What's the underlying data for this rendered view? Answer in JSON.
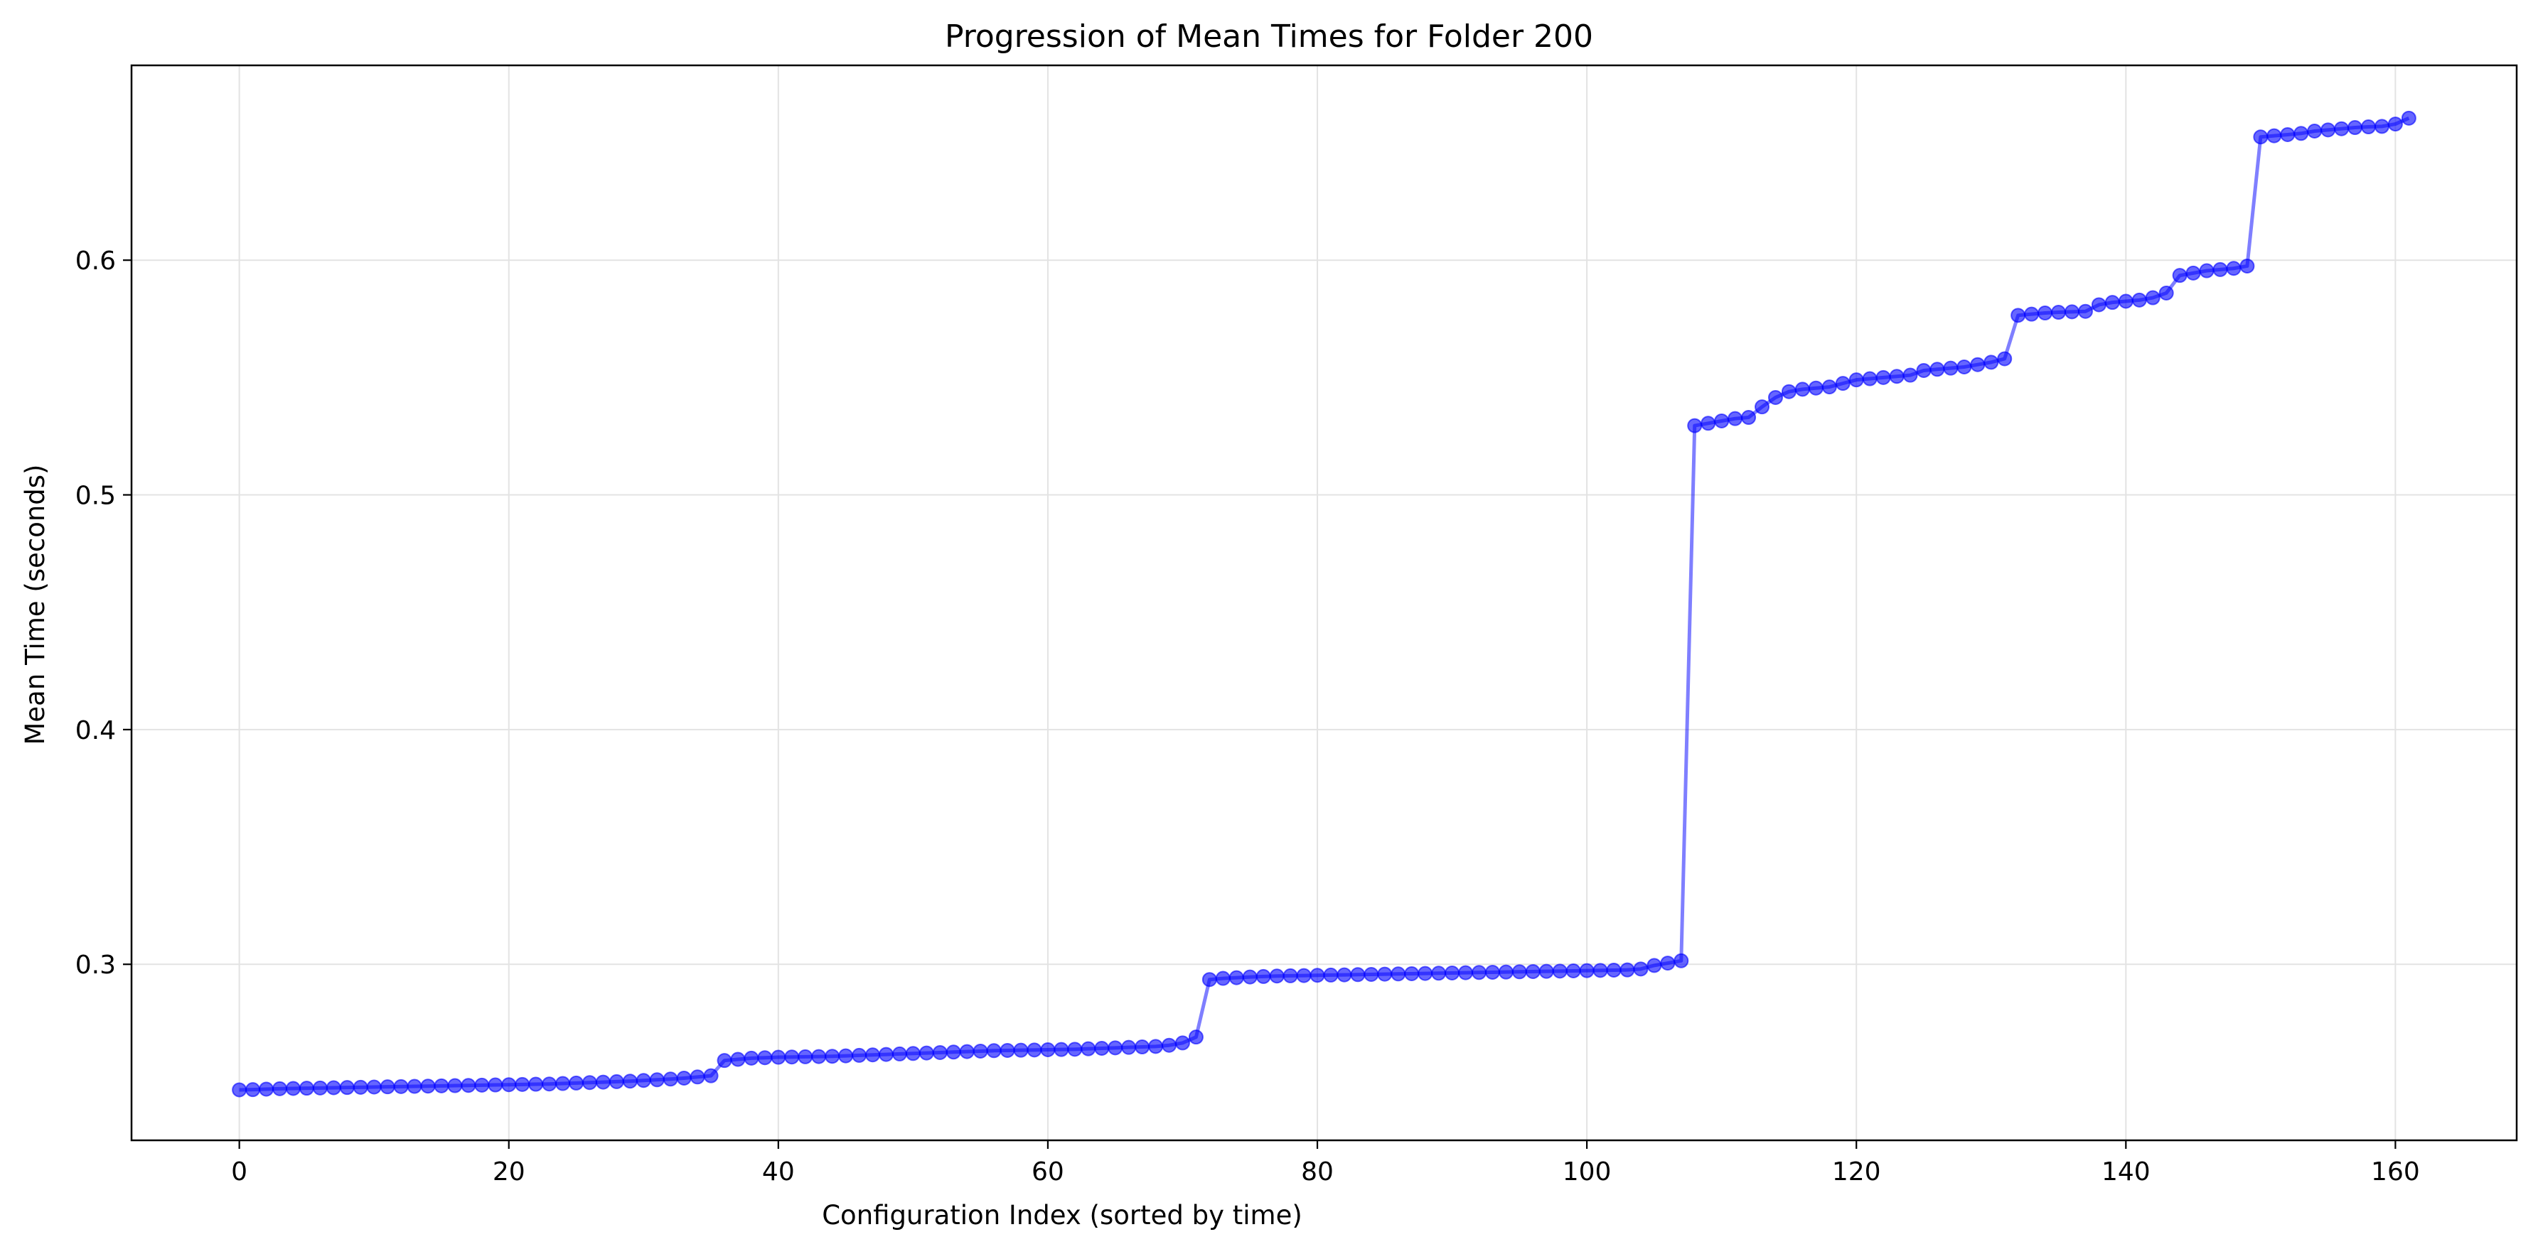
{
  "chart_data": {
    "type": "line",
    "title": "Progression of Mean Times for Folder 200",
    "xlabel": "Configuration Index (sorted by time)",
    "ylabel": "Mean Time (seconds)",
    "xlim": [
      -8,
      169
    ],
    "ylim": [
      0.225,
      0.683
    ],
    "xticks": [
      0,
      20,
      40,
      60,
      80,
      100,
      120,
      140,
      160
    ],
    "xtick_labels": [
      "0",
      "20",
      "40",
      "60",
      "80",
      "100",
      "120",
      "140",
      "160"
    ],
    "yticks": [
      0.3,
      0.4,
      0.5,
      0.6
    ],
    "ytick_labels": [
      "0.3",
      "0.4",
      "0.5",
      "0.6"
    ],
    "grid": true,
    "line_color": "#0000ff",
    "marker": "circle",
    "series": [
      {
        "x": [
          0,
          1,
          2,
          3,
          4,
          5,
          6,
          7,
          8,
          9,
          10,
          11,
          12,
          13,
          14,
          15,
          16,
          17,
          18,
          19,
          20,
          21,
          22,
          23,
          24,
          25,
          26,
          27,
          28,
          29,
          30,
          31,
          32,
          33,
          34,
          35,
          36,
          37,
          38,
          39,
          40,
          41,
          42,
          43,
          44,
          45,
          46,
          47,
          48,
          49,
          50,
          51,
          52,
          53,
          54,
          55,
          56,
          57,
          58,
          59,
          60,
          61,
          62,
          63,
          64,
          65,
          66,
          67,
          68,
          69,
          70,
          71,
          72,
          73,
          74,
          75,
          76,
          77,
          78,
          79,
          80,
          81,
          82,
          83,
          84,
          85,
          86,
          87,
          88,
          89,
          90,
          91,
          92,
          93,
          94,
          95,
          96,
          97,
          98,
          99,
          100,
          101,
          102,
          103,
          104,
          105,
          106,
          107,
          108,
          109,
          110,
          111,
          112,
          113,
          114,
          115,
          116,
          117,
          118,
          119,
          120,
          121,
          122,
          123,
          124,
          125,
          126,
          127,
          128,
          129,
          130,
          131,
          132,
          133,
          134,
          135,
          136,
          137,
          138,
          139,
          140,
          141,
          142,
          143,
          144,
          145,
          146,
          147,
          148,
          149,
          150,
          151,
          152,
          153,
          154,
          155,
          156,
          157,
          158,
          159,
          160,
          161
        ],
        "y": [
          0.2465,
          0.2466,
          0.2468,
          0.247,
          0.2471,
          0.2472,
          0.2473,
          0.2474,
          0.2475,
          0.2476,
          0.2477,
          0.2478,
          0.2479,
          0.248,
          0.2481,
          0.2482,
          0.2483,
          0.2484,
          0.2485,
          0.2486,
          0.2487,
          0.2488,
          0.2489,
          0.249,
          0.2492,
          0.2494,
          0.2496,
          0.2498,
          0.25,
          0.2502,
          0.2505,
          0.2508,
          0.2511,
          0.2515,
          0.252,
          0.2525,
          0.259,
          0.2595,
          0.26,
          0.2602,
          0.2604,
          0.2605,
          0.2606,
          0.2607,
          0.2608,
          0.261,
          0.2612,
          0.2614,
          0.2616,
          0.2618,
          0.262,
          0.2622,
          0.2624,
          0.2626,
          0.2628,
          0.263,
          0.2632,
          0.2633,
          0.2634,
          0.2635,
          0.2636,
          0.2637,
          0.2638,
          0.264,
          0.2642,
          0.2644,
          0.2646,
          0.2648,
          0.265,
          0.2655,
          0.2665,
          0.269,
          0.2935,
          0.294,
          0.2943,
          0.2946,
          0.2948,
          0.295,
          0.2951,
          0.2952,
          0.2953,
          0.2954,
          0.2955,
          0.2956,
          0.2957,
          0.2958,
          0.2959,
          0.296,
          0.2961,
          0.2962,
          0.2963,
          0.2964,
          0.2965,
          0.2966,
          0.2967,
          0.2968,
          0.2969,
          0.297,
          0.2971,
          0.2972,
          0.2973,
          0.2974,
          0.2975,
          0.2976,
          0.298,
          0.2995,
          0.3005,
          0.3015,
          0.5295,
          0.5305,
          0.5315,
          0.5325,
          0.533,
          0.5375,
          0.5415,
          0.544,
          0.545,
          0.5455,
          0.546,
          0.5475,
          0.549,
          0.5495,
          0.55,
          0.5505,
          0.551,
          0.553,
          0.5535,
          0.554,
          0.5545,
          0.5555,
          0.5565,
          0.558,
          0.5765,
          0.577,
          0.5775,
          0.5778,
          0.578,
          0.5782,
          0.581,
          0.582,
          0.5825,
          0.583,
          0.584,
          0.586,
          0.5935,
          0.5945,
          0.5955,
          0.596,
          0.5965,
          0.5975,
          0.6525,
          0.653,
          0.6535,
          0.654,
          0.655,
          0.6555,
          0.656,
          0.6565,
          0.6568,
          0.657,
          0.658,
          0.6605
        ]
      }
    ]
  }
}
